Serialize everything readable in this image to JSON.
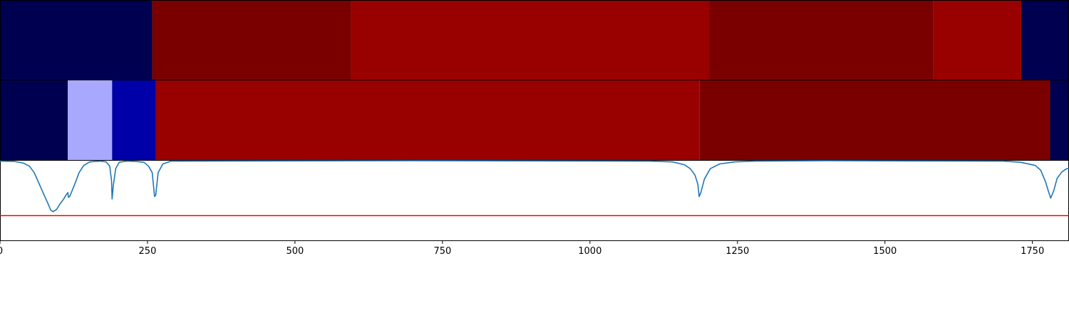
{
  "chart_data": [
    {
      "type": "segments",
      "x_range": [
        0,
        1812
      ],
      "segments": [
        {
          "start": 0,
          "end": 258,
          "color": "#000050"
        },
        {
          "start": 258,
          "end": 595,
          "color": "#7a0000"
        },
        {
          "start": 595,
          "end": 1202,
          "color": "#990000"
        },
        {
          "start": 1202,
          "end": 1582,
          "color": "#7a0000"
        },
        {
          "start": 1582,
          "end": 1731,
          "color": "#990000"
        },
        {
          "start": 1731,
          "end": 1812,
          "color": "#000050"
        }
      ]
    },
    {
      "type": "segments",
      "x_range": [
        0,
        1812
      ],
      "segments": [
        {
          "start": 0,
          "end": 115,
          "color": "#000050"
        },
        {
          "start": 115,
          "end": 190,
          "color": "#a8a8ff"
        },
        {
          "start": 190,
          "end": 264,
          "color": "#0000a8"
        },
        {
          "start": 264,
          "end": 1186,
          "color": "#990000"
        },
        {
          "start": 1186,
          "end": 1780,
          "color": "#7a0000"
        },
        {
          "start": 1780,
          "end": 1812,
          "color": "#000050"
        }
      ]
    },
    {
      "type": "line",
      "xlim": [
        0,
        1812
      ],
      "ylim": [
        0,
        1
      ],
      "threshold": {
        "value": 0.31,
        "color": "#ff0000"
      },
      "series": [
        {
          "color": "#1f77b4",
          "points": [
            [
              0,
              0.995
            ],
            [
              25,
              0.99
            ],
            [
              40,
              0.97
            ],
            [
              50,
              0.93
            ],
            [
              58,
              0.85
            ],
            [
              64,
              0.75
            ],
            [
              70,
              0.65
            ],
            [
              76,
              0.55
            ],
            [
              82,
              0.45
            ],
            [
              86,
              0.38
            ],
            [
              90,
              0.36
            ],
            [
              96,
              0.39
            ],
            [
              102,
              0.46
            ],
            [
              108,
              0.52
            ],
            [
              112,
              0.57
            ],
            [
              115,
              0.6
            ],
            [
              116,
              0.54
            ],
            [
              118,
              0.55
            ],
            [
              122,
              0.62
            ],
            [
              128,
              0.73
            ],
            [
              134,
              0.85
            ],
            [
              142,
              0.94
            ],
            [
              152,
              0.985
            ],
            [
              170,
              0.995
            ],
            [
              180,
              0.985
            ],
            [
              186,
              0.93
            ],
            [
              189,
              0.75
            ],
            [
              190,
              0.52
            ],
            [
              192,
              0.68
            ],
            [
              196,
              0.9
            ],
            [
              202,
              0.98
            ],
            [
              215,
              0.995
            ],
            [
              230,
              0.99
            ],
            [
              244,
              0.98
            ],
            [
              252,
              0.93
            ],
            [
              258,
              0.85
            ],
            [
              262,
              0.55
            ],
            [
              264,
              0.57
            ],
            [
              268,
              0.85
            ],
            [
              276,
              0.96
            ],
            [
              290,
              0.995
            ],
            [
              700,
              1
            ],
            [
              1100,
              0.995
            ],
            [
              1140,
              0.985
            ],
            [
              1160,
              0.95
            ],
            [
              1170,
              0.9
            ],
            [
              1178,
              0.82
            ],
            [
              1183,
              0.7
            ],
            [
              1185,
              0.55
            ],
            [
              1188,
              0.6
            ],
            [
              1194,
              0.77
            ],
            [
              1204,
              0.9
            ],
            [
              1220,
              0.96
            ],
            [
              1245,
              0.985
            ],
            [
              1280,
              0.995
            ],
            [
              1400,
              1
            ],
            [
              1700,
              0.995
            ],
            [
              1730,
              0.98
            ],
            [
              1755,
              0.94
            ],
            [
              1764,
              0.88
            ],
            [
              1772,
              0.74
            ],
            [
              1777,
              0.62
            ],
            [
              1781,
              0.53
            ],
            [
              1786,
              0.62
            ],
            [
              1792,
              0.78
            ],
            [
              1800,
              0.86
            ],
            [
              1808,
              0.9
            ],
            [
              1812,
              0.9
            ]
          ]
        }
      ]
    }
  ],
  "axis": {
    "ticks": [
      0,
      250,
      500,
      750,
      1000,
      1250,
      1500,
      1750
    ],
    "tick_labels": [
      "0",
      "250",
      "500",
      "750",
      "1000",
      "1250",
      "1500",
      "1750"
    ]
  }
}
